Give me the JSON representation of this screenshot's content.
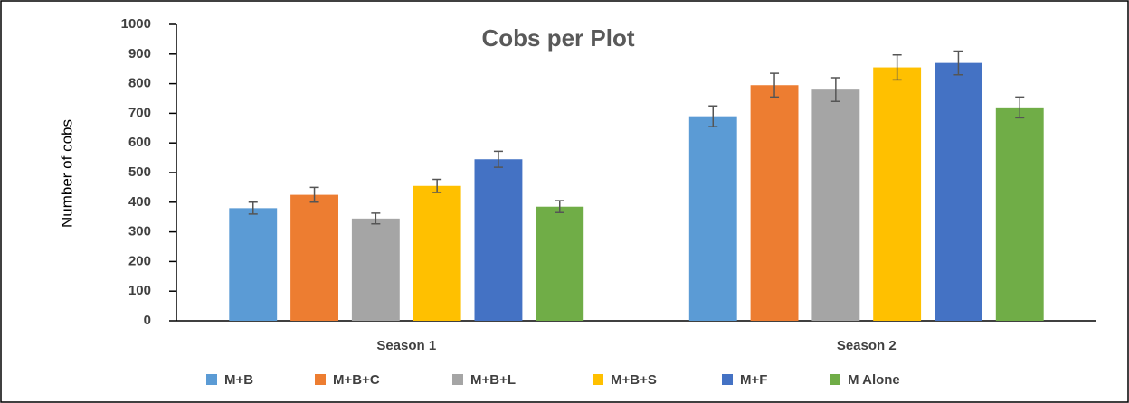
{
  "chart_data": {
    "type": "bar",
    "title": "Cobs per Plot",
    "y_label": "Number of cobs",
    "categories": [
      "Season 1",
      "Season 2"
    ],
    "series": [
      {
        "name": "M+B",
        "color": "#5b9bd5",
        "values": [
          380,
          690
        ],
        "errors": [
          20,
          35
        ]
      },
      {
        "name": "M+B+C",
        "color": "#ed7d31",
        "values": [
          425,
          795
        ],
        "errors": [
          25,
          40
        ]
      },
      {
        "name": "M+B+L",
        "color": "#a5a5a5",
        "values": [
          345,
          780
        ],
        "errors": [
          18,
          40
        ]
      },
      {
        "name": "M+B+S",
        "color": "#ffc000",
        "values": [
          455,
          855
        ],
        "errors": [
          22,
          42
        ]
      },
      {
        "name": "M+F",
        "color": "#4472c4",
        "values": [
          545,
          870
        ],
        "errors": [
          27,
          40
        ]
      },
      {
        "name": "M Alone",
        "color": "#70ad47",
        "values": [
          385,
          720
        ],
        "errors": [
          20,
          35
        ]
      }
    ],
    "ylim": [
      0,
      1000
    ],
    "yticks": [
      0,
      100,
      200,
      300,
      400,
      500,
      600,
      700,
      800,
      900,
      1000
    ],
    "grid": false,
    "legend": "bottom"
  }
}
